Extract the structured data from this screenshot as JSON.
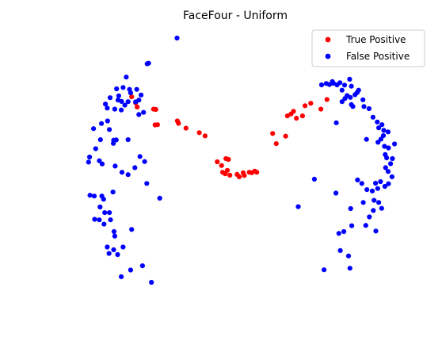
{
  "chart_data": {
    "type": "scatter",
    "title": "FaceFour - Uniform",
    "xlabel": "",
    "ylabel": "",
    "axes_visible": false,
    "grid": false,
    "legend_placement": "top-right",
    "xlim": [
      0,
      1
    ],
    "ylim": [
      0,
      1
    ],
    "series": [
      {
        "name": "True Positive",
        "color": "#ff0000",
        "points": [
          [
            0.212,
            0.78
          ],
          [
            0.223,
            0.758
          ],
          [
            0.227,
            0.742
          ],
          [
            0.273,
            0.734
          ],
          [
            0.279,
            0.733
          ],
          [
            0.277,
            0.675
          ],
          [
            0.284,
            0.676
          ],
          [
            0.339,
            0.69
          ],
          [
            0.342,
            0.681
          ],
          [
            0.363,
            0.663
          ],
          [
            0.4,
            0.646
          ],
          [
            0.416,
            0.634
          ],
          [
            0.45,
            0.537
          ],
          [
            0.462,
            0.523
          ],
          [
            0.474,
            0.549
          ],
          [
            0.481,
            0.546
          ],
          [
            0.465,
            0.498
          ],
          [
            0.472,
            0.492
          ],
          [
            0.478,
            0.505
          ],
          [
            0.485,
            0.487
          ],
          [
            0.505,
            0.49
          ],
          [
            0.511,
            0.481
          ],
          [
            0.522,
            0.496
          ],
          [
            0.525,
            0.486
          ],
          [
            0.539,
            0.498
          ],
          [
            0.546,
            0.496
          ],
          [
            0.554,
            0.502
          ],
          [
            0.56,
            0.498
          ],
          [
            0.604,
            0.643
          ],
          [
            0.614,
            0.605
          ],
          [
            0.64,
            0.633
          ],
          [
            0.645,
            0.709
          ],
          [
            0.655,
            0.716
          ],
          [
            0.662,
            0.726
          ],
          [
            0.67,
            0.7
          ],
          [
            0.687,
            0.709
          ],
          [
            0.694,
            0.747
          ],
          [
            0.71,
            0.756
          ],
          [
            0.738,
            0.734
          ],
          [
            0.755,
            0.77
          ]
        ]
      },
      {
        "name": "False Positive",
        "color": "#0000ff",
        "points": [
          [
            0.338,
            1.0
          ],
          [
            0.255,
            0.904
          ],
          [
            0.259,
            0.906
          ],
          [
            0.197,
            0.854
          ],
          [
            0.17,
            0.81
          ],
          [
            0.188,
            0.815
          ],
          [
            0.206,
            0.808
          ],
          [
            0.226,
            0.808
          ],
          [
            0.209,
            0.795
          ],
          [
            0.176,
            0.784
          ],
          [
            0.152,
            0.777
          ],
          [
            0.174,
            0.768
          ],
          [
            0.184,
            0.763
          ],
          [
            0.202,
            0.762
          ],
          [
            0.193,
            0.749
          ],
          [
            0.139,
            0.753
          ],
          [
            0.144,
            0.738
          ],
          [
            0.165,
            0.734
          ],
          [
            0.183,
            0.731
          ],
          [
            0.238,
            0.787
          ],
          [
            0.232,
            0.768
          ],
          [
            0.223,
            0.761
          ],
          [
            0.245,
            0.722
          ],
          [
            0.232,
            0.714
          ],
          [
            0.145,
            0.69
          ],
          [
            0.128,
            0.68
          ],
          [
            0.106,
            0.661
          ],
          [
            0.15,
            0.658
          ],
          [
            0.162,
            0.618
          ],
          [
            0.112,
            0.586
          ],
          [
            0.095,
            0.555
          ],
          [
            0.122,
            0.541
          ],
          [
            0.092,
            0.536
          ],
          [
            0.161,
            0.606
          ],
          [
            0.125,
            0.62
          ],
          [
            0.13,
            0.529
          ],
          [
            0.166,
            0.521
          ],
          [
            0.169,
            0.619
          ],
          [
            0.202,
            0.62
          ],
          [
            0.235,
            0.557
          ],
          [
            0.248,
            0.538
          ],
          [
            0.185,
            0.498
          ],
          [
            0.202,
            0.489
          ],
          [
            0.221,
            0.515
          ],
          [
            0.254,
            0.456
          ],
          [
            0.29,
            0.401
          ],
          [
            0.096,
            0.412
          ],
          [
            0.108,
            0.409
          ],
          [
            0.129,
            0.409
          ],
          [
            0.134,
            0.397
          ],
          [
            0.16,
            0.424
          ],
          [
            0.124,
            0.368
          ],
          [
            0.137,
            0.347
          ],
          [
            0.15,
            0.347
          ],
          [
            0.109,
            0.322
          ],
          [
            0.122,
            0.32
          ],
          [
            0.135,
            0.304
          ],
          [
            0.153,
            0.32
          ],
          [
            0.163,
            0.276
          ],
          [
            0.165,
            0.259
          ],
          [
            0.144,
            0.218
          ],
          [
            0.162,
            0.208
          ],
          [
            0.188,
            0.218
          ],
          [
            0.149,
            0.194
          ],
          [
            0.173,
            0.19
          ],
          [
            0.212,
            0.284
          ],
          [
            0.209,
            0.132
          ],
          [
            0.183,
            0.107
          ],
          [
            0.242,
            0.148
          ],
          [
            0.267,
            0.086
          ],
          [
            0.74,
            0.825
          ],
          [
            0.753,
            0.83
          ],
          [
            0.762,
            0.826
          ],
          [
            0.77,
            0.837
          ],
          [
            0.773,
            0.831
          ],
          [
            0.783,
            0.825
          ],
          [
            0.791,
            0.833
          ],
          [
            0.797,
            0.805
          ],
          [
            0.804,
            0.824
          ],
          [
            0.818,
            0.846
          ],
          [
            0.823,
            0.82
          ],
          [
            0.833,
            0.788
          ],
          [
            0.839,
            0.796
          ],
          [
            0.843,
            0.805
          ],
          [
            0.82,
            0.778
          ],
          [
            0.811,
            0.785
          ],
          [
            0.805,
            0.774
          ],
          [
            0.797,
            0.762
          ],
          [
            0.823,
            0.751
          ],
          [
            0.827,
            0.744
          ],
          [
            0.855,
            0.769
          ],
          [
            0.858,
            0.744
          ],
          [
            0.872,
            0.736
          ],
          [
            0.883,
            0.704
          ],
          [
            0.895,
            0.686
          ],
          [
            0.908,
            0.676
          ],
          [
            0.899,
            0.664
          ],
          [
            0.913,
            0.655
          ],
          [
            0.925,
            0.649
          ],
          [
            0.912,
            0.635
          ],
          [
            0.905,
            0.622
          ],
          [
            0.897,
            0.61
          ],
          [
            0.865,
            0.621
          ],
          [
            0.781,
            0.683
          ],
          [
            0.915,
            0.595
          ],
          [
            0.926,
            0.589
          ],
          [
            0.943,
            0.604
          ],
          [
            0.917,
            0.564
          ],
          [
            0.921,
            0.552
          ],
          [
            0.937,
            0.549
          ],
          [
            0.932,
            0.53
          ],
          [
            0.918,
            0.515
          ],
          [
            0.925,
            0.501
          ],
          [
            0.936,
            0.481
          ],
          [
            0.926,
            0.455
          ],
          [
            0.916,
            0.445
          ],
          [
            0.904,
            0.463
          ],
          [
            0.89,
            0.457
          ],
          [
            0.896,
            0.437
          ],
          [
            0.881,
            0.428
          ],
          [
            0.866,
            0.433
          ],
          [
            0.852,
            0.456
          ],
          [
            0.84,
            0.469
          ],
          [
            0.856,
            0.385
          ],
          [
            0.886,
            0.393
          ],
          [
            0.899,
            0.385
          ],
          [
            0.907,
            0.363
          ],
          [
            0.884,
            0.355
          ],
          [
            0.873,
            0.331
          ],
          [
            0.863,
            0.299
          ],
          [
            0.821,
            0.362
          ],
          [
            0.824,
            0.298
          ],
          [
            0.891,
            0.278
          ],
          [
            0.802,
            0.276
          ],
          [
            0.78,
            0.42
          ],
          [
            0.72,
            0.472
          ],
          [
            0.675,
            0.369
          ],
          [
            0.788,
            0.269
          ],
          [
            0.792,
            0.205
          ],
          [
            0.815,
            0.185
          ],
          [
            0.819,
            0.139
          ],
          [
            0.747,
            0.133
          ]
        ]
      }
    ]
  }
}
